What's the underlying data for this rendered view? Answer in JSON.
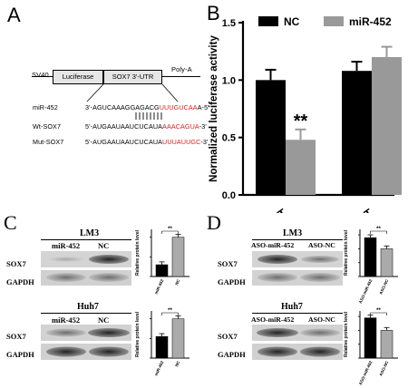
{
  "panelA": {
    "letter": "A",
    "construct": {
      "sv40": "SV40",
      "luciferase": "Luciferase",
      "utr": "SOX7 3'-UTR",
      "polya": "Poly-A"
    },
    "rows": [
      {
        "label": "miR-452",
        "prefix": "3'-AGUCAAAGGAGACG",
        "highlight": "UUUGUCAA",
        "suffix": "A-5'"
      },
      {
        "label": "Wt-SOX7",
        "prefix": "5'-AUGAAUAAUCUCAUA",
        "highlight": "AAACAGUA",
        "suffix": "-3'"
      },
      {
        "label": "Mut-SOX7",
        "prefix": "5'-AUGAAUAAUCUCAUA",
        "highlight": "UUUAUUGC",
        "suffix": "-3'"
      }
    ]
  },
  "panelB": {
    "letter": "B",
    "chart_data": {
      "type": "bar",
      "categories": [
        "WT",
        "MT"
      ],
      "series": [
        {
          "name": "NC",
          "values": [
            1.0,
            1.08
          ],
          "errors": [
            0.09,
            0.08
          ],
          "color": "#000000"
        },
        {
          "name": "miR-452",
          "values": [
            0.48,
            1.2
          ],
          "errors": [
            0.09,
            0.09
          ],
          "color": "#999999"
        }
      ],
      "ylabel": "Normalized luciferase activity",
      "ylim": [
        0,
        1.5
      ],
      "yticks": [
        "0.0",
        "0.5",
        "1.0",
        "1.5"
      ],
      "annotation": "**",
      "legend": "top"
    }
  },
  "panelC": {
    "letter": "C",
    "lm3": {
      "title": "LM3",
      "lanes": [
        "miR-452",
        "NC"
      ],
      "rows": [
        "SOX7",
        "GAPDH"
      ]
    },
    "huh7": {
      "title": "Huh7",
      "lanes": [
        "miR-452",
        "NC"
      ],
      "rows": [
        "SOX7",
        "GAPDH"
      ]
    },
    "charts": [
      {
        "type": "bar",
        "categories": [
          "miR-452",
          "NC"
        ],
        "values": [
          0.3,
          1.0
        ],
        "ylabel": "Relative protein level",
        "annotation": "**"
      },
      {
        "type": "bar",
        "categories": [
          "miR-452",
          "NC"
        ],
        "values": [
          0.55,
          1.0
        ],
        "ylabel": "Relative protein level",
        "annotation": "**"
      }
    ]
  },
  "panelD": {
    "letter": "D",
    "lm3": {
      "title": "LM3",
      "lanes": [
        "ASO-miR-452",
        "ASO-NC"
      ],
      "rows": [
        "SOX7",
        "GAPDH"
      ]
    },
    "huh7": {
      "title": "Huh7",
      "lanes": [
        "ASO-miR-452",
        "ASO-NC"
      ],
      "rows": [
        "SOX7",
        "GAPDH"
      ]
    },
    "charts": [
      {
        "type": "bar",
        "categories": [
          "ASO-miR-452",
          "ASO-NC"
        ],
        "values": [
          1.4,
          1.0
        ],
        "ylabel": "Relative protein level",
        "annotation": "**"
      },
      {
        "type": "bar",
        "categories": [
          "ASO-miR-452",
          "ASO-NC"
        ],
        "values": [
          1.45,
          1.0
        ],
        "ylabel": "Relative protein level",
        "annotation": "**"
      }
    ]
  }
}
